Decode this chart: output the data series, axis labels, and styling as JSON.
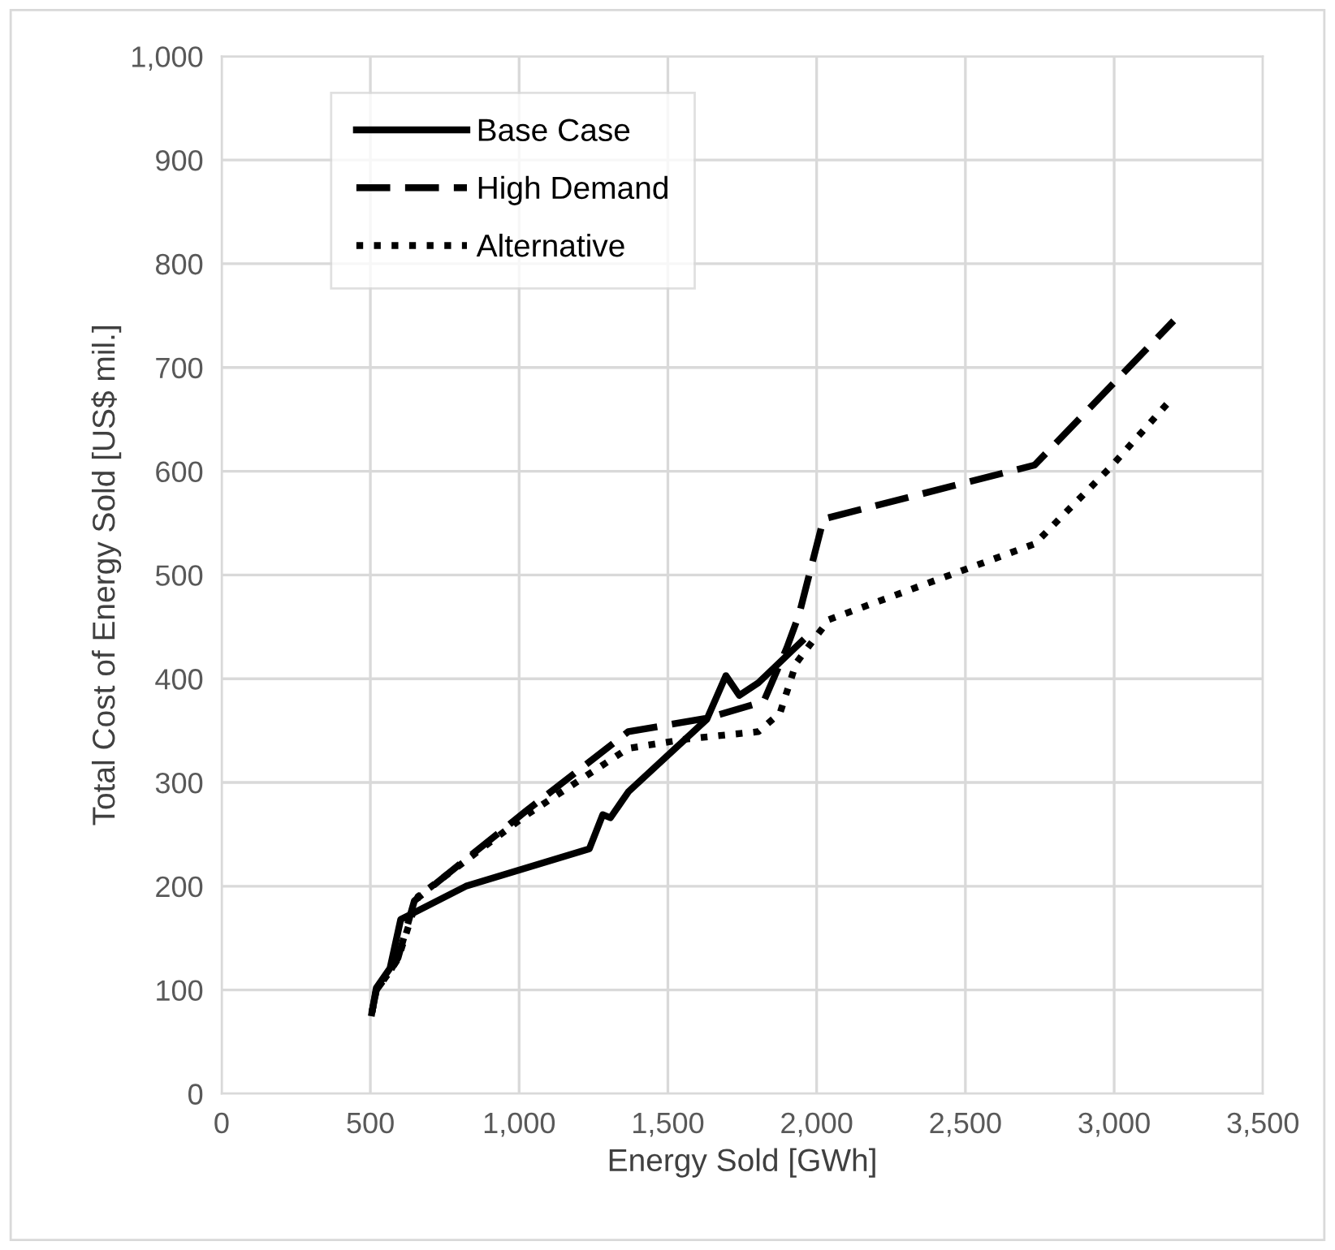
{
  "chart_data": {
    "type": "line",
    "xlabel": "Energy Sold [GWh]",
    "ylabel": "Total Cost of Energy Sold [US$ mil.]",
    "xlim": [
      0,
      3500
    ],
    "xticks": [
      {
        "value": 0,
        "label": "0"
      },
      {
        "value": 500,
        "label": "500"
      },
      {
        "value": 1000,
        "label": "1,000"
      },
      {
        "value": 1500,
        "label": "1,500"
      },
      {
        "value": 2000,
        "label": "2,000"
      },
      {
        "value": 2500,
        "label": "2,500"
      },
      {
        "value": 3000,
        "label": "3,000"
      },
      {
        "value": 3500,
        "label": "3,500"
      }
    ],
    "ylim": [
      0,
      1000
    ],
    "yticks": [
      {
        "value": 0,
        "label": "0"
      },
      {
        "value": 100,
        "label": "100"
      },
      {
        "value": 200,
        "label": "200"
      },
      {
        "value": 300,
        "label": "300"
      },
      {
        "value": 400,
        "label": "400"
      },
      {
        "value": 500,
        "label": "500"
      },
      {
        "value": 600,
        "label": "600"
      },
      {
        "value": 700,
        "label": "700"
      },
      {
        "value": 800,
        "label": "800"
      },
      {
        "value": 900,
        "label": "900"
      },
      {
        "value": 1000,
        "label": "1,000"
      }
    ],
    "grid": true,
    "legend": "top left",
    "marker": "none",
    "series": [
      {
        "name": "Base Case",
        "color": "#000000",
        "line_style": "solid",
        "x": [
          505,
          520,
          566,
          602,
          821,
          1236,
          1281,
          1307,
          1367,
          1631,
          1695,
          1740,
          1804,
          1950
        ],
        "values": [
          78,
          102,
          121,
          168,
          200,
          236,
          269,
          266,
          291,
          361,
          403,
          384,
          396,
          436
        ]
      },
      {
        "name": "High Demand",
        "color": "#000000",
        "line_style": "dashed",
        "x": [
          505,
          520,
          566,
          593,
          648,
          1021,
          1367,
          1631,
          1822,
          1900,
          1941,
          2023,
          2733,
          3200
        ],
        "values": [
          78,
          100,
          118,
          131,
          186,
          272,
          349,
          362,
          378,
          430,
          462,
          554,
          606,
          745
        ]
      },
      {
        "name": "Alternative",
        "color": "#000000",
        "line_style": "dotted",
        "x": [
          505,
          520,
          566,
          593,
          660,
          1021,
          1367,
          1566,
          1804,
          1877,
          1931,
          2041,
          2733,
          2988,
          3200
        ],
        "values": [
          78,
          100,
          118,
          130,
          190,
          268,
          333,
          342,
          349,
          367,
          415,
          457,
          530,
          604,
          672
        ]
      }
    ]
  }
}
